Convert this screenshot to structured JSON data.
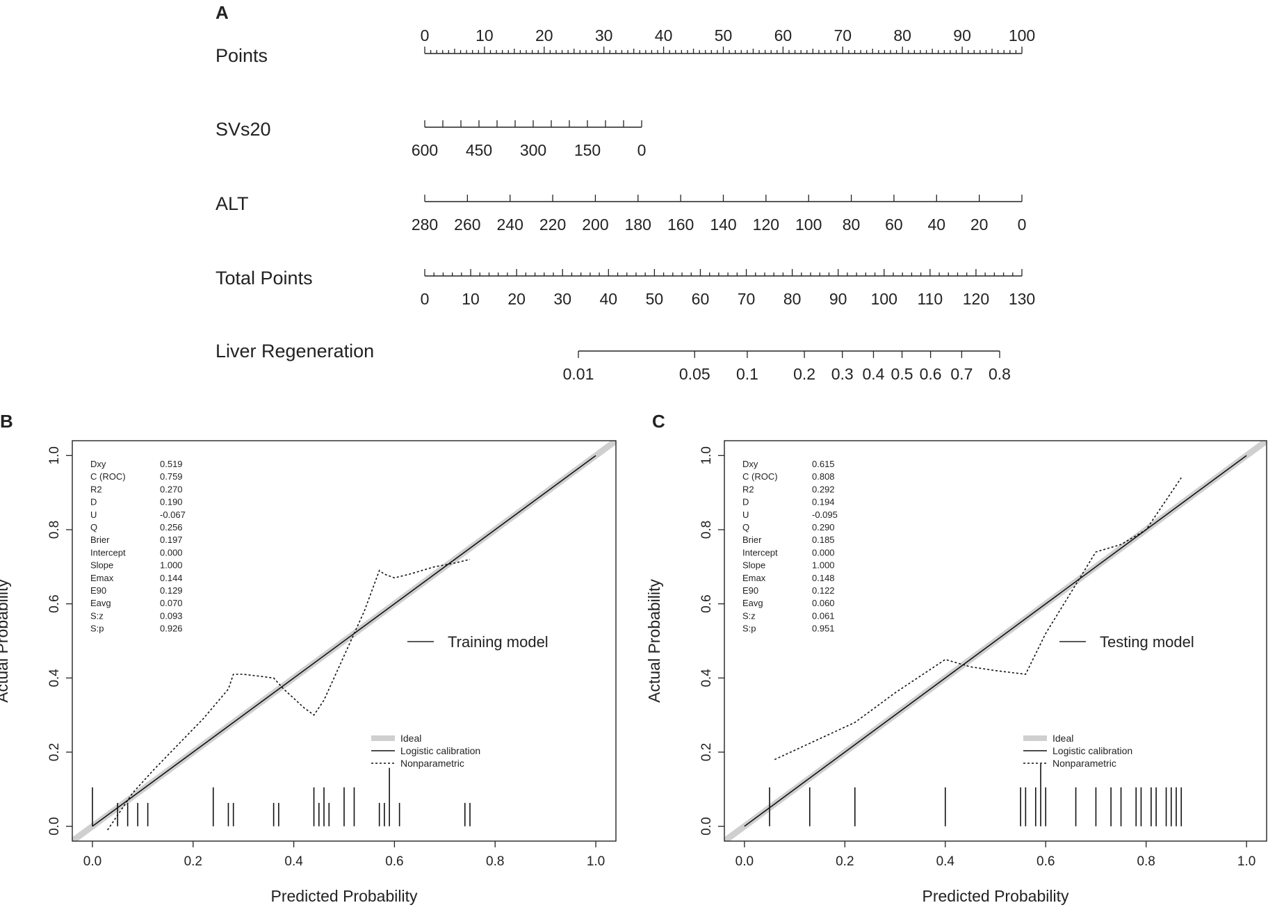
{
  "chart_data": [
    {
      "panel": "A",
      "type": "nomogram",
      "rows": [
        {
          "label": "Points",
          "scale": [
            0,
            100
          ],
          "labels": [
            "0",
            "10",
            "20",
            "30",
            "40",
            "50",
            "60",
            "70",
            "80",
            "90",
            "100"
          ]
        },
        {
          "label": "SVs20",
          "scale": [
            600,
            0
          ],
          "labels": [
            "600",
            "450",
            "300",
            "150",
            "0"
          ]
        },
        {
          "label": "ALT",
          "scale": [
            280,
            0
          ],
          "labels": [
            "280",
            "260",
            "240",
            "220",
            "200",
            "180",
            "160",
            "140",
            "120",
            "100",
            "80",
            "60",
            "40",
            "20",
            "0"
          ]
        },
        {
          "label": "Total Points",
          "scale": [
            0,
            130
          ],
          "labels": [
            "0",
            "10",
            "20",
            "30",
            "40",
            "50",
            "60",
            "70",
            "80",
            "90",
            "100",
            "110",
            "120",
            "130"
          ]
        },
        {
          "label": "Liver Regeneration",
          "scale": [
            0.01,
            0.8
          ],
          "labels": [
            "0.01",
            "0.05",
            "0.1",
            "0.2",
            "0.3",
            "0.4",
            "0.5",
            "0.6",
            "0.7",
            "0.8"
          ]
        }
      ]
    },
    {
      "panel": "B",
      "type": "line",
      "title": "",
      "xlabel": "Predicted Probability",
      "ylabel": "Actual Probability",
      "xlim": [
        -0.04,
        1.04
      ],
      "ylim": [
        -0.04,
        1.04
      ],
      "xticks": [
        "0.0",
        "0.2",
        "0.4",
        "0.6",
        "0.8",
        "1.0"
      ],
      "yticks": [
        "0.0",
        "0.2",
        "0.4",
        "0.6",
        "0.8",
        "1.0"
      ],
      "model_label": "Training model",
      "stats": [
        [
          "Dxy",
          "0.519"
        ],
        [
          "C (ROC)",
          "0.759"
        ],
        [
          "R2",
          "0.270"
        ],
        [
          "D",
          "0.190"
        ],
        [
          "U",
          "-0.067"
        ],
        [
          "Q",
          "0.256"
        ],
        [
          "Brier",
          "0.197"
        ],
        [
          "Intercept",
          "0.000"
        ],
        [
          "Slope",
          "1.000"
        ],
        [
          "Emax",
          "0.144"
        ],
        [
          "E90",
          "0.129"
        ],
        [
          "Eavg",
          "0.070"
        ],
        [
          "S:z",
          "0.093"
        ],
        [
          "S:p",
          "0.926"
        ]
      ],
      "legend": [
        "Ideal",
        "Logistic calibration",
        "Nonparametric"
      ],
      "series": [
        {
          "name": "Ideal",
          "x": [
            -0.04,
            1.04
          ],
          "y": [
            -0.04,
            1.04
          ]
        },
        {
          "name": "Logistic calibration",
          "x": [
            0,
            1
          ],
          "y": [
            0,
            1
          ]
        },
        {
          "name": "Nonparametric",
          "x": [
            0.03,
            0.05,
            0.08,
            0.12,
            0.17,
            0.22,
            0.27,
            0.28,
            0.3,
            0.36,
            0.38,
            0.42,
            0.44,
            0.46,
            0.5,
            0.54,
            0.57,
            0.58,
            0.6,
            0.63,
            0.68,
            0.72,
            0.75
          ],
          "y": [
            -0.01,
            0.03,
            0.09,
            0.15,
            0.22,
            0.29,
            0.37,
            0.41,
            0.41,
            0.4,
            0.37,
            0.32,
            0.3,
            0.34,
            0.46,
            0.58,
            0.69,
            0.68,
            0.67,
            0.68,
            0.7,
            0.71,
            0.72
          ]
        }
      ],
      "rug": [
        0.0,
        0.05,
        0.07,
        0.09,
        0.11,
        0.24,
        0.27,
        0.28,
        0.36,
        0.37,
        0.44,
        0.45,
        0.46,
        0.47,
        0.5,
        0.52,
        0.57,
        0.58,
        0.59,
        0.61,
        0.74,
        0.75
      ],
      "rug_heights": [
        1,
        0.6,
        0.6,
        0.6,
        0.6,
        1,
        0.6,
        0.6,
        0.6,
        0.6,
        1,
        0.6,
        1,
        0.6,
        1,
        1,
        0.6,
        0.6,
        1.5,
        0.6,
        0.6,
        0.6
      ]
    },
    {
      "panel": "C",
      "type": "line",
      "title": "",
      "xlabel": "Predicted Probability",
      "ylabel": "Actual Probability",
      "xlim": [
        -0.04,
        1.04
      ],
      "ylim": [
        -0.04,
        1.04
      ],
      "xticks": [
        "0.0",
        "0.2",
        "0.4",
        "0.6",
        "0.8",
        "1.0"
      ],
      "yticks": [
        "0.0",
        "0.2",
        "0.4",
        "0.6",
        "0.8",
        "1.0"
      ],
      "model_label": "Testing model",
      "stats": [
        [
          "Dxy",
          "0.615"
        ],
        [
          "C (ROC)",
          "0.808"
        ],
        [
          "R2",
          "0.292"
        ],
        [
          "D",
          "0.194"
        ],
        [
          "U",
          "-0.095"
        ],
        [
          "Q",
          "0.290"
        ],
        [
          "Brier",
          "0.185"
        ],
        [
          "Intercept",
          "0.000"
        ],
        [
          "Slope",
          "1.000"
        ],
        [
          "Emax",
          "0.148"
        ],
        [
          "E90",
          "0.122"
        ],
        [
          "Eavg",
          "0.060"
        ],
        [
          "S:z",
          "0.061"
        ],
        [
          "S:p",
          "0.951"
        ]
      ],
      "legend": [
        "Ideal",
        "Logistic calibration",
        "Nonparametric"
      ],
      "series": [
        {
          "name": "Ideal",
          "x": [
            -0.04,
            1.04
          ],
          "y": [
            -0.04,
            1.04
          ]
        },
        {
          "name": "Logistic calibration",
          "x": [
            0,
            1
          ],
          "y": [
            0,
            1
          ]
        },
        {
          "name": "Nonparametric",
          "x": [
            0.06,
            0.14,
            0.22,
            0.3,
            0.4,
            0.45,
            0.5,
            0.56,
            0.6,
            0.65,
            0.7,
            0.75,
            0.8,
            0.87
          ],
          "y": [
            0.18,
            0.23,
            0.28,
            0.36,
            0.45,
            0.43,
            0.42,
            0.41,
            0.52,
            0.63,
            0.74,
            0.76,
            0.8,
            0.94
          ]
        }
      ],
      "rug": [
        0.05,
        0.13,
        0.22,
        0.4,
        0.55,
        0.56,
        0.58,
        0.59,
        0.6,
        0.66,
        0.7,
        0.73,
        0.75,
        0.78,
        0.79,
        0.81,
        0.82,
        0.84,
        0.85,
        0.86,
        0.87
      ],
      "rug_heights": [
        1,
        1,
        1,
        1,
        1,
        1,
        1,
        1.6,
        1,
        1,
        1,
        1,
        1,
        1,
        1,
        1,
        1,
        1,
        1,
        1,
        1
      ]
    }
  ]
}
